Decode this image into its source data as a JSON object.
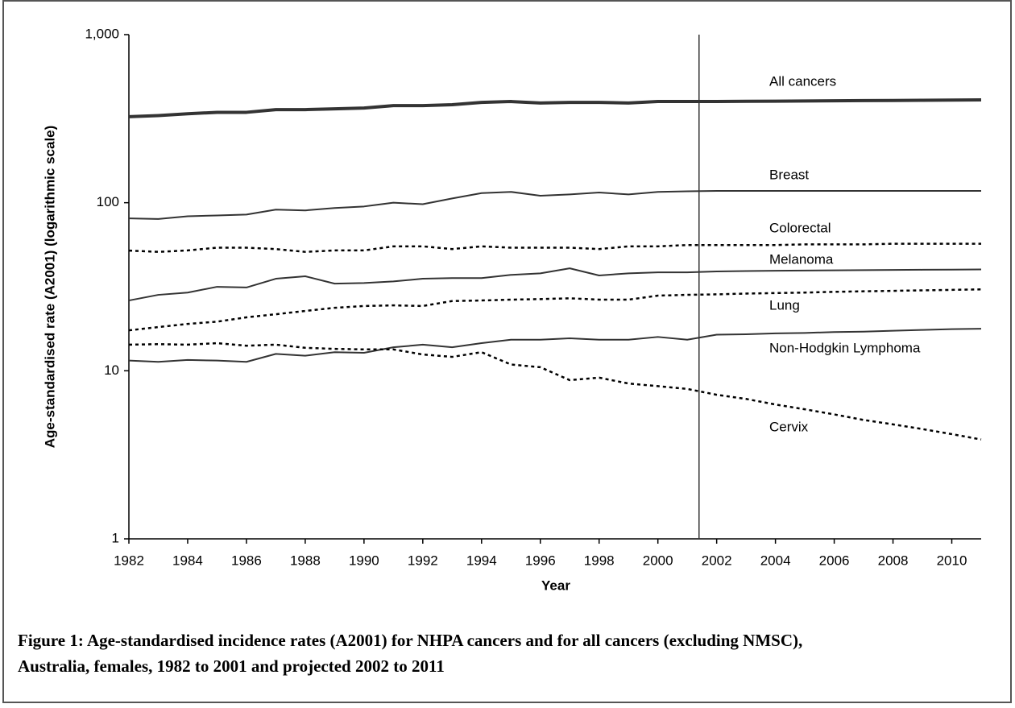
{
  "chart_data": {
    "type": "line",
    "caption": "Figure 1: Age-standardised incidence rates (A2001) for NHPA cancers and for all cancers (excluding NMSC), Australia, females, 1982 to 2001 and projected 2002 to 2011",
    "x_label": "Year",
    "y_label": "Age-standardised rate (A2001) (logarithmic scale)",
    "y_log": true,
    "x": [
      1982,
      1983,
      1984,
      1985,
      1986,
      1987,
      1988,
      1989,
      1990,
      1991,
      1992,
      1993,
      1994,
      1995,
      1996,
      1997,
      1998,
      1999,
      2000,
      2001,
      2002,
      2003,
      2004,
      2005,
      2006,
      2007,
      2008,
      2009,
      2010,
      2011
    ],
    "xlim": [
      1982,
      2011
    ],
    "xticks": [
      1982,
      1984,
      1986,
      1988,
      1990,
      1992,
      1994,
      1996,
      1998,
      2000,
      2002,
      2004,
      2006,
      2008,
      2010
    ],
    "ylim": [
      1,
      1000
    ],
    "yticks": [
      1,
      10,
      100,
      {
        "value": 1000,
        "label": "1,000"
      }
    ],
    "vertical_line_x": 2001.4,
    "series": [
      {
        "name": "All cancers",
        "color": "#333333",
        "line_style": "bold",
        "values": [
          325,
          330,
          338,
          345,
          345,
          358,
          358,
          362,
          366,
          378,
          378,
          383,
          395,
          400,
          392,
          395,
          395,
          392,
          400,
          400,
          400,
          401,
          402,
          403,
          404,
          405,
          406,
          407,
          408,
          409
        ]
      },
      {
        "name": "Breast",
        "color": "#333333",
        "line_style": "solid",
        "values": [
          80.7,
          80,
          83,
          84,
          85,
          91,
          90,
          93,
          95,
          100,
          98,
          106,
          114,
          116,
          110,
          112,
          115,
          112,
          116,
          117,
          117.5,
          117.5,
          117.5,
          117.5,
          117.5,
          117.5,
          117.5,
          117.5,
          117.5,
          117.5
        ]
      },
      {
        "name": "Colorectal",
        "color": "#000000",
        "line_style": "dotted",
        "values": [
          51.9,
          51,
          52,
          54,
          54,
          53,
          51,
          52,
          52,
          55,
          55,
          53,
          55,
          54,
          54,
          54,
          53,
          55,
          55,
          56,
          56,
          56,
          56,
          56.5,
          56.5,
          56.5,
          57,
          57,
          57,
          57
        ]
      },
      {
        "name": "Melanoma",
        "color": "#333333",
        "line_style": "solid",
        "values": [
          26.2,
          28.3,
          29.2,
          31.6,
          31.3,
          35.3,
          36.5,
          33,
          33.3,
          34,
          35.3,
          35.6,
          35.6,
          37.2,
          38,
          40.7,
          36.9,
          38,
          38.5,
          38.5,
          39,
          39.2,
          39.4,
          39.5,
          39.6,
          39.7,
          39.8,
          39.9,
          40,
          40.1
        ]
      },
      {
        "name": "Lung",
        "color": "#000000",
        "line_style": "dotted",
        "values": [
          17.4,
          18.2,
          19,
          19.6,
          20.8,
          21.7,
          22.7,
          23.7,
          24.3,
          24.5,
          24.3,
          26,
          26.2,
          26.5,
          26.7,
          27,
          26.5,
          26.5,
          28,
          28.3,
          28.5,
          28.8,
          29,
          29.2,
          29.5,
          29.7,
          29.9,
          30.1,
          30.3,
          30.5
        ]
      },
      {
        "name": "Non-Hodgkin Lymphoma",
        "color": "#333333",
        "line_style": "solid",
        "values": [
          11.5,
          11.3,
          11.6,
          11.5,
          11.3,
          12.6,
          12.3,
          12.9,
          12.8,
          13.8,
          14.3,
          13.8,
          14.6,
          15.3,
          15.3,
          15.6,
          15.3,
          15.3,
          15.9,
          15.3,
          16.4,
          16.5,
          16.7,
          16.8,
          17,
          17.1,
          17.3,
          17.5,
          17.7,
          17.8
        ]
      },
      {
        "name": "Cervix",
        "color": "#000000",
        "line_style": "dotted",
        "values": [
          14.3,
          14.4,
          14.3,
          14.6,
          14.1,
          14.3,
          13.7,
          13.5,
          13.4,
          13.4,
          12.5,
          12.1,
          12.9,
          10.9,
          10.5,
          8.8,
          9.1,
          8.4,
          8.1,
          7.8,
          7.2,
          6.8,
          6.3,
          5.9,
          5.5,
          5.1,
          4.8,
          4.5,
          4.2,
          3.9
        ]
      }
    ]
  }
}
